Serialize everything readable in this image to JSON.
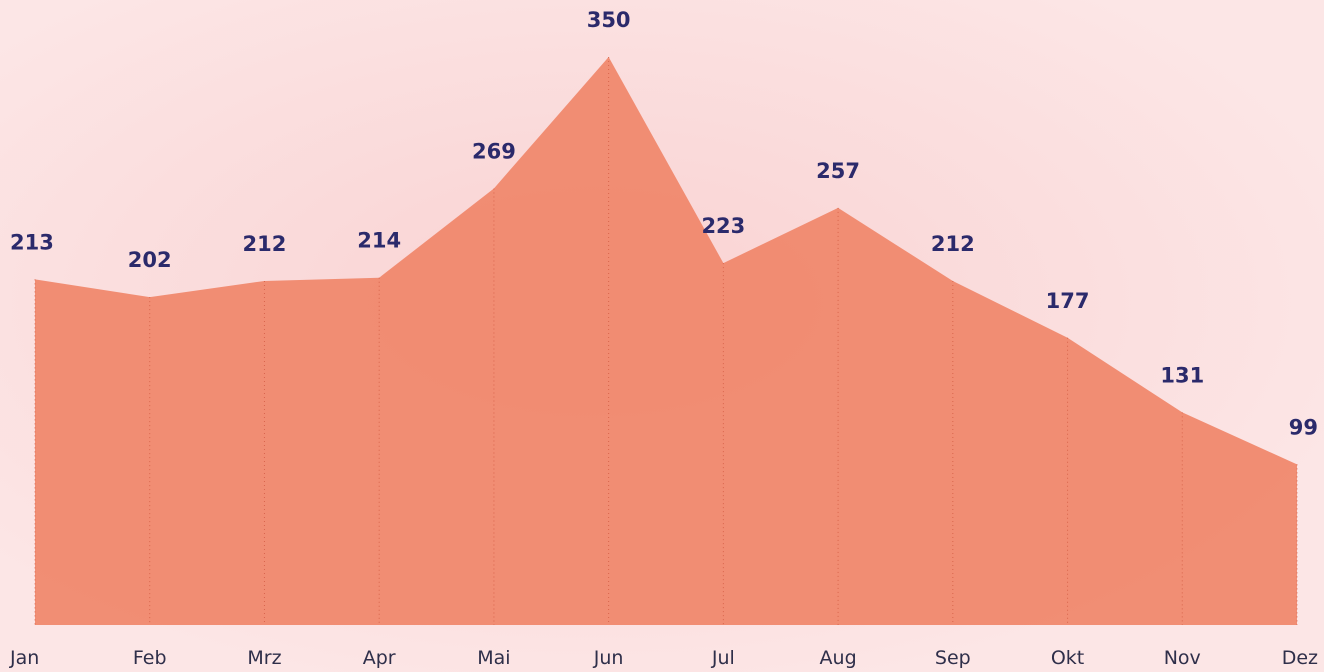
{
  "chart_data": {
    "type": "area",
    "categories": [
      "Jan",
      "Feb",
      "Mrz",
      "Apr",
      "Mai",
      "Jun",
      "Jul",
      "Aug",
      "Sep",
      "Okt",
      "Nov",
      "Dez"
    ],
    "values": [
      213,
      202,
      212,
      214,
      269,
      350,
      223,
      257,
      212,
      177,
      131,
      99
    ],
    "color": "#f0876b"
  }
}
